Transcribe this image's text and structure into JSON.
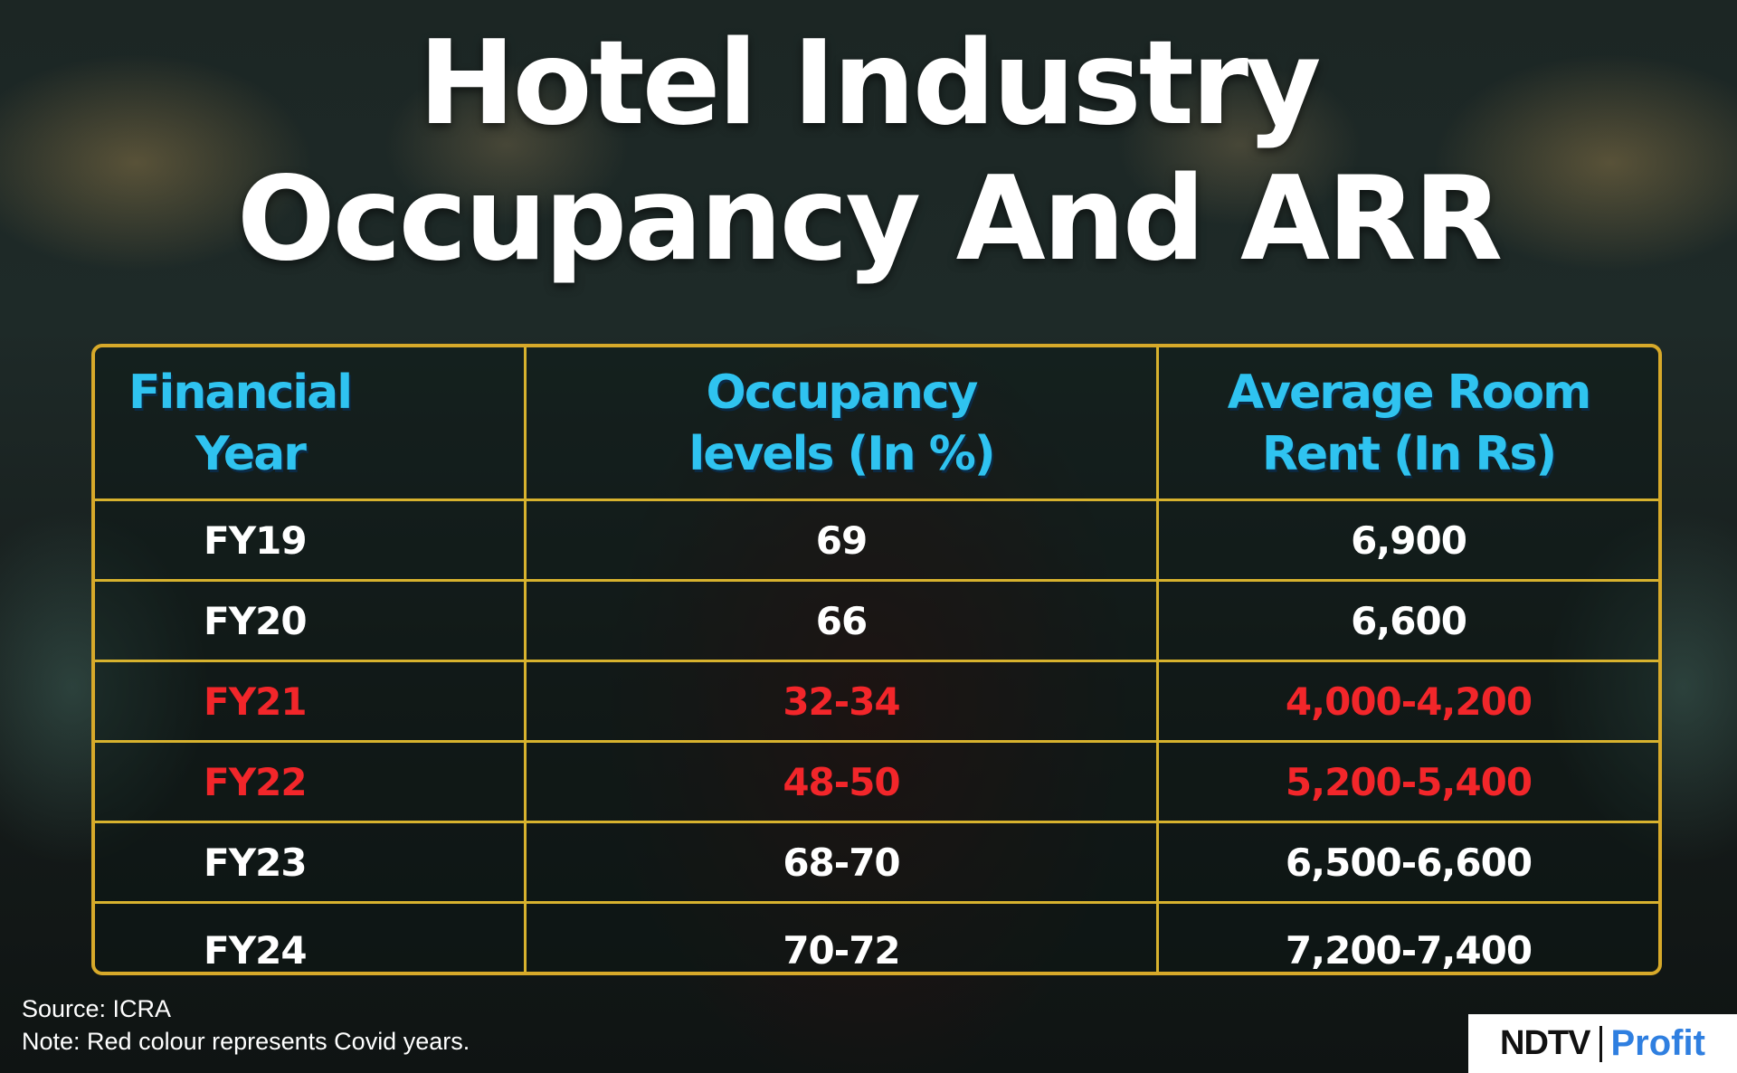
{
  "title": {
    "line1": "Hotel Industry",
    "line2": "Occupancy And ARR"
  },
  "chart_data": {
    "type": "table",
    "columns": [
      {
        "line1": "Financial",
        "line2": "Year"
      },
      {
        "line1": "Occupancy",
        "line2": "levels (In %)"
      },
      {
        "line1": "Average Room",
        "line2": "Rent (In Rs)"
      }
    ],
    "rows": [
      {
        "year": "FY19",
        "occupancy": "69",
        "arr": "6,900",
        "covid": false
      },
      {
        "year": "FY20",
        "occupancy": "66",
        "arr": "6,600",
        "covid": false
      },
      {
        "year": "FY21",
        "occupancy": "32-34",
        "arr": "4,000-4,200",
        "covid": true
      },
      {
        "year": "FY22",
        "occupancy": "48-50",
        "arr": "5,200-5,400",
        "covid": true
      },
      {
        "year": "FY23",
        "occupancy": "68-70",
        "arr": "6,500-6,600",
        "covid": false
      },
      {
        "year": "FY24",
        "occupancy": "70-72",
        "arr": "7,200-7,400",
        "covid": false
      }
    ]
  },
  "footer": {
    "source": "Source: ICRA",
    "note": "Note: Red colour represents Covid years."
  },
  "logo": {
    "brand_a": "NDTV",
    "brand_b": "Profit"
  },
  "colors": {
    "header_text": "#2fc3f0",
    "covid_text": "#f2262a",
    "grid": "#d7b22e",
    "brand_b": "#2f7fe0"
  }
}
